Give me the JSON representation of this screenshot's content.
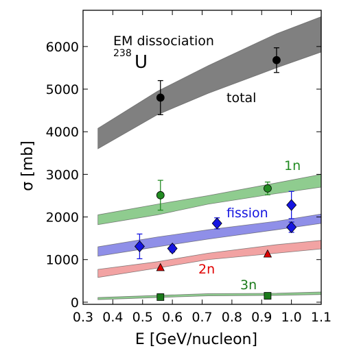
{
  "chart_data": {
    "type": "line",
    "title": "",
    "xlabel": "E  [GeV/nucleon]",
    "ylabel": "σ  [mb]",
    "xlim": [
      0.3,
      1.1
    ],
    "ylim": [
      -50,
      6850
    ],
    "x_ticks": [
      0.3,
      0.4,
      0.5,
      0.6,
      0.7,
      0.8,
      0.9,
      1.0,
      1.1
    ],
    "x_tick_labels": [
      "0.3",
      "0.4",
      "0.5",
      "0.6",
      "0.7",
      "0.8",
      "0.9",
      "1.0",
      "1.1"
    ],
    "y_ticks": [
      0,
      1000,
      2000,
      3000,
      4000,
      5000,
      6000
    ],
    "y_tick_labels": [
      "0",
      "1000",
      "2000",
      "3000",
      "4000",
      "5000",
      "6000"
    ],
    "grid": false,
    "annotations": {
      "em_label": "EM dissociation",
      "isotope_mass": "238",
      "isotope_symbol": "U"
    },
    "bands": [
      {
        "label": "total",
        "color": "#808080",
        "x": [
          0.35,
          0.55,
          0.72,
          0.95,
          1.1
        ],
        "lower": [
          3600,
          4400,
          4900,
          5500,
          5870
        ],
        "upper": [
          4080,
          4950,
          5550,
          6300,
          6700
        ]
      },
      {
        "label": "1n",
        "color": "#8fcc8f",
        "x": [
          0.35,
          0.55,
          0.72,
          0.95,
          1.1
        ],
        "lower": [
          1820,
          2050,
          2300,
          2550,
          2700
        ],
        "upper": [
          2050,
          2300,
          2500,
          2800,
          3000
        ]
      },
      {
        "label": "fission",
        "color": "#8f8fe8",
        "x": [
          0.35,
          0.55,
          0.72,
          0.95,
          1.1
        ],
        "lower": [
          1080,
          1300,
          1480,
          1700,
          1850
        ],
        "upper": [
          1300,
          1530,
          1700,
          1900,
          2070
        ]
      },
      {
        "label": "2n",
        "color": "#f2a3a3",
        "x": [
          0.35,
          0.55,
          0.72,
          0.95,
          1.1
        ],
        "lower": [
          580,
          800,
          1000,
          1150,
          1250
        ],
        "upper": [
          770,
          950,
          1150,
          1350,
          1450
        ]
      },
      {
        "label": "3n",
        "color": "#8fcc8f",
        "x": [
          0.35,
          0.55,
          0.72,
          0.95,
          1.1
        ],
        "lower": [
          60,
          110,
          150,
          160,
          180
        ],
        "upper": [
          110,
          160,
          200,
          210,
          240
        ]
      }
    ],
    "series": [
      {
        "name": "total",
        "color": "#000000",
        "marker": "circle",
        "points": [
          {
            "x": 0.56,
            "y": 4800,
            "err": 400
          },
          {
            "x": 0.95,
            "y": 5680,
            "err": 290
          }
        ]
      },
      {
        "name": "1n",
        "color": "#228b22",
        "marker": "circle",
        "points": [
          {
            "x": 0.56,
            "y": 2510,
            "err": 350
          },
          {
            "x": 0.92,
            "y": 2670,
            "err": 150
          }
        ]
      },
      {
        "name": "fission",
        "color": "#1515e0",
        "marker": "diamond",
        "points": [
          {
            "x": 0.49,
            "y": 1310,
            "err": 290
          },
          {
            "x": 0.6,
            "y": 1260,
            "err": 80
          },
          {
            "x": 0.75,
            "y": 1850,
            "err": 130
          },
          {
            "x": 1.0,
            "y": 2280,
            "err": 320
          },
          {
            "x": 1.0,
            "y": 1760,
            "err": 120
          }
        ]
      },
      {
        "name": "2n",
        "color": "#e00000",
        "marker": "triangle",
        "points": [
          {
            "x": 0.56,
            "y": 810,
            "err": 0
          },
          {
            "x": 0.92,
            "y": 1130,
            "err": 0
          }
        ]
      },
      {
        "name": "3n",
        "color": "#1a7a1a",
        "marker": "square",
        "points": [
          {
            "x": 0.56,
            "y": 120,
            "err": 0
          },
          {
            "x": 0.92,
            "y": 150,
            "err": 0
          }
        ]
      }
    ]
  }
}
